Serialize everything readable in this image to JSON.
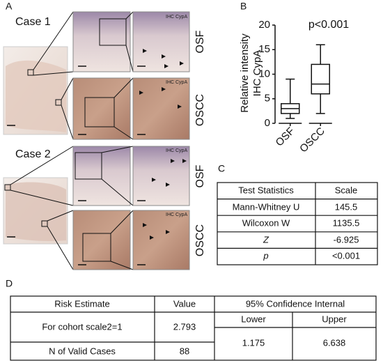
{
  "panel_a": {
    "label": "A",
    "cases": [
      "Case 1",
      "Case 2"
    ],
    "tissues": [
      "OSF",
      "OSCC"
    ],
    "stain": "IHC CypA"
  },
  "chart_data": {
    "type": "box",
    "label": "B",
    "annotation": "p<0.001",
    "y_label": [
      "Relative intensity",
      "IHC CypA"
    ],
    "categories": [
      "OSF",
      "OSCC"
    ],
    "boxes": [
      {
        "min": 1,
        "q1": 2,
        "median": 3,
        "q3": 4,
        "max": 9
      },
      {
        "min": 2,
        "q1": 6,
        "median": 8,
        "q3": 12,
        "max": 16
      }
    ],
    "ylim": [
      0,
      20
    ],
    "yticks": [
      0,
      5,
      10,
      15,
      20
    ]
  },
  "table_c": {
    "label": "C",
    "header": [
      "Test Statistics",
      "Scale"
    ],
    "rows": [
      [
        "Mann-Whitney U",
        "145.5"
      ],
      [
        "Wilcoxon W",
        "1135.5"
      ],
      [
        "Z",
        "-6.925"
      ],
      [
        "p",
        "<0.001"
      ]
    ]
  },
  "table_d": {
    "label": "D",
    "header": [
      "Risk Estimate",
      "Value",
      "95% Confidence Internal"
    ],
    "subheader": [
      "Lower",
      "Upper"
    ],
    "rows": [
      [
        "For cohort scale2=1",
        "2.793",
        "1.175",
        "6.638"
      ],
      [
        "N of Valid Cases",
        "88"
      ]
    ]
  }
}
